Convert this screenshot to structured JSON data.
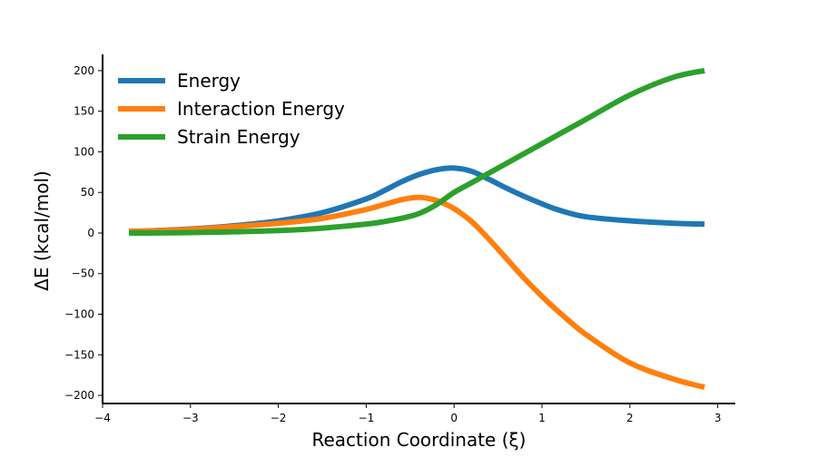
{
  "chart_data": {
    "type": "line",
    "title": "",
    "xlabel": "Reaction Coordinate (ξ)",
    "ylabel": "ΔE (kcal/mol)",
    "xlim": [
      -4,
      3.2
    ],
    "ylim": [
      -210,
      220
    ],
    "xticks": [
      -4,
      -3,
      -2,
      -1,
      0,
      1,
      2,
      3
    ],
    "xtick_labels": [
      "−4",
      "−3",
      "−2",
      "−1",
      "0",
      "1",
      "2",
      "3"
    ],
    "yticks": [
      -200,
      -150,
      -100,
      -50,
      0,
      50,
      100,
      150,
      200
    ],
    "ytick_labels": [
      "−200",
      "−150",
      "−100",
      "−50",
      "0",
      "50",
      "100",
      "150",
      "200"
    ],
    "grid": false,
    "legend_position": "upper-left",
    "x": [
      -3.7,
      -3.5,
      -3.0,
      -2.5,
      -2.0,
      -1.5,
      -1.0,
      -0.8,
      -0.6,
      -0.4,
      -0.2,
      0.0,
      0.2,
      0.4,
      0.6,
      0.8,
      1.0,
      1.2,
      1.5,
      2.0,
      2.5,
      2.85
    ],
    "series": [
      {
        "name": "Energy",
        "color": "#1f77b4",
        "values": [
          2,
          2.5,
          5,
          9,
          15,
          25,
          42,
          52,
          63,
          72,
          78,
          80,
          76,
          66,
          55,
          45,
          36,
          28,
          20,
          15,
          12,
          11
        ]
      },
      {
        "name": "Interaction Energy",
        "color": "#ff7f0e",
        "values": [
          2,
          2.5,
          4.5,
          8,
          12,
          18,
          29,
          35,
          41,
          44,
          40,
          30,
          14,
          -8,
          -32,
          -56,
          -78,
          -98,
          -125,
          -160,
          -180,
          -190
        ]
      },
      {
        "name": "Strain Energy",
        "color": "#2ca02c",
        "values": [
          0,
          0,
          0.5,
          1.5,
          3,
          6,
          11,
          14,
          18,
          24,
          35,
          50,
          62,
          74,
          86,
          98,
          110,
          122,
          140,
          170,
          192,
          200
        ]
      }
    ]
  }
}
